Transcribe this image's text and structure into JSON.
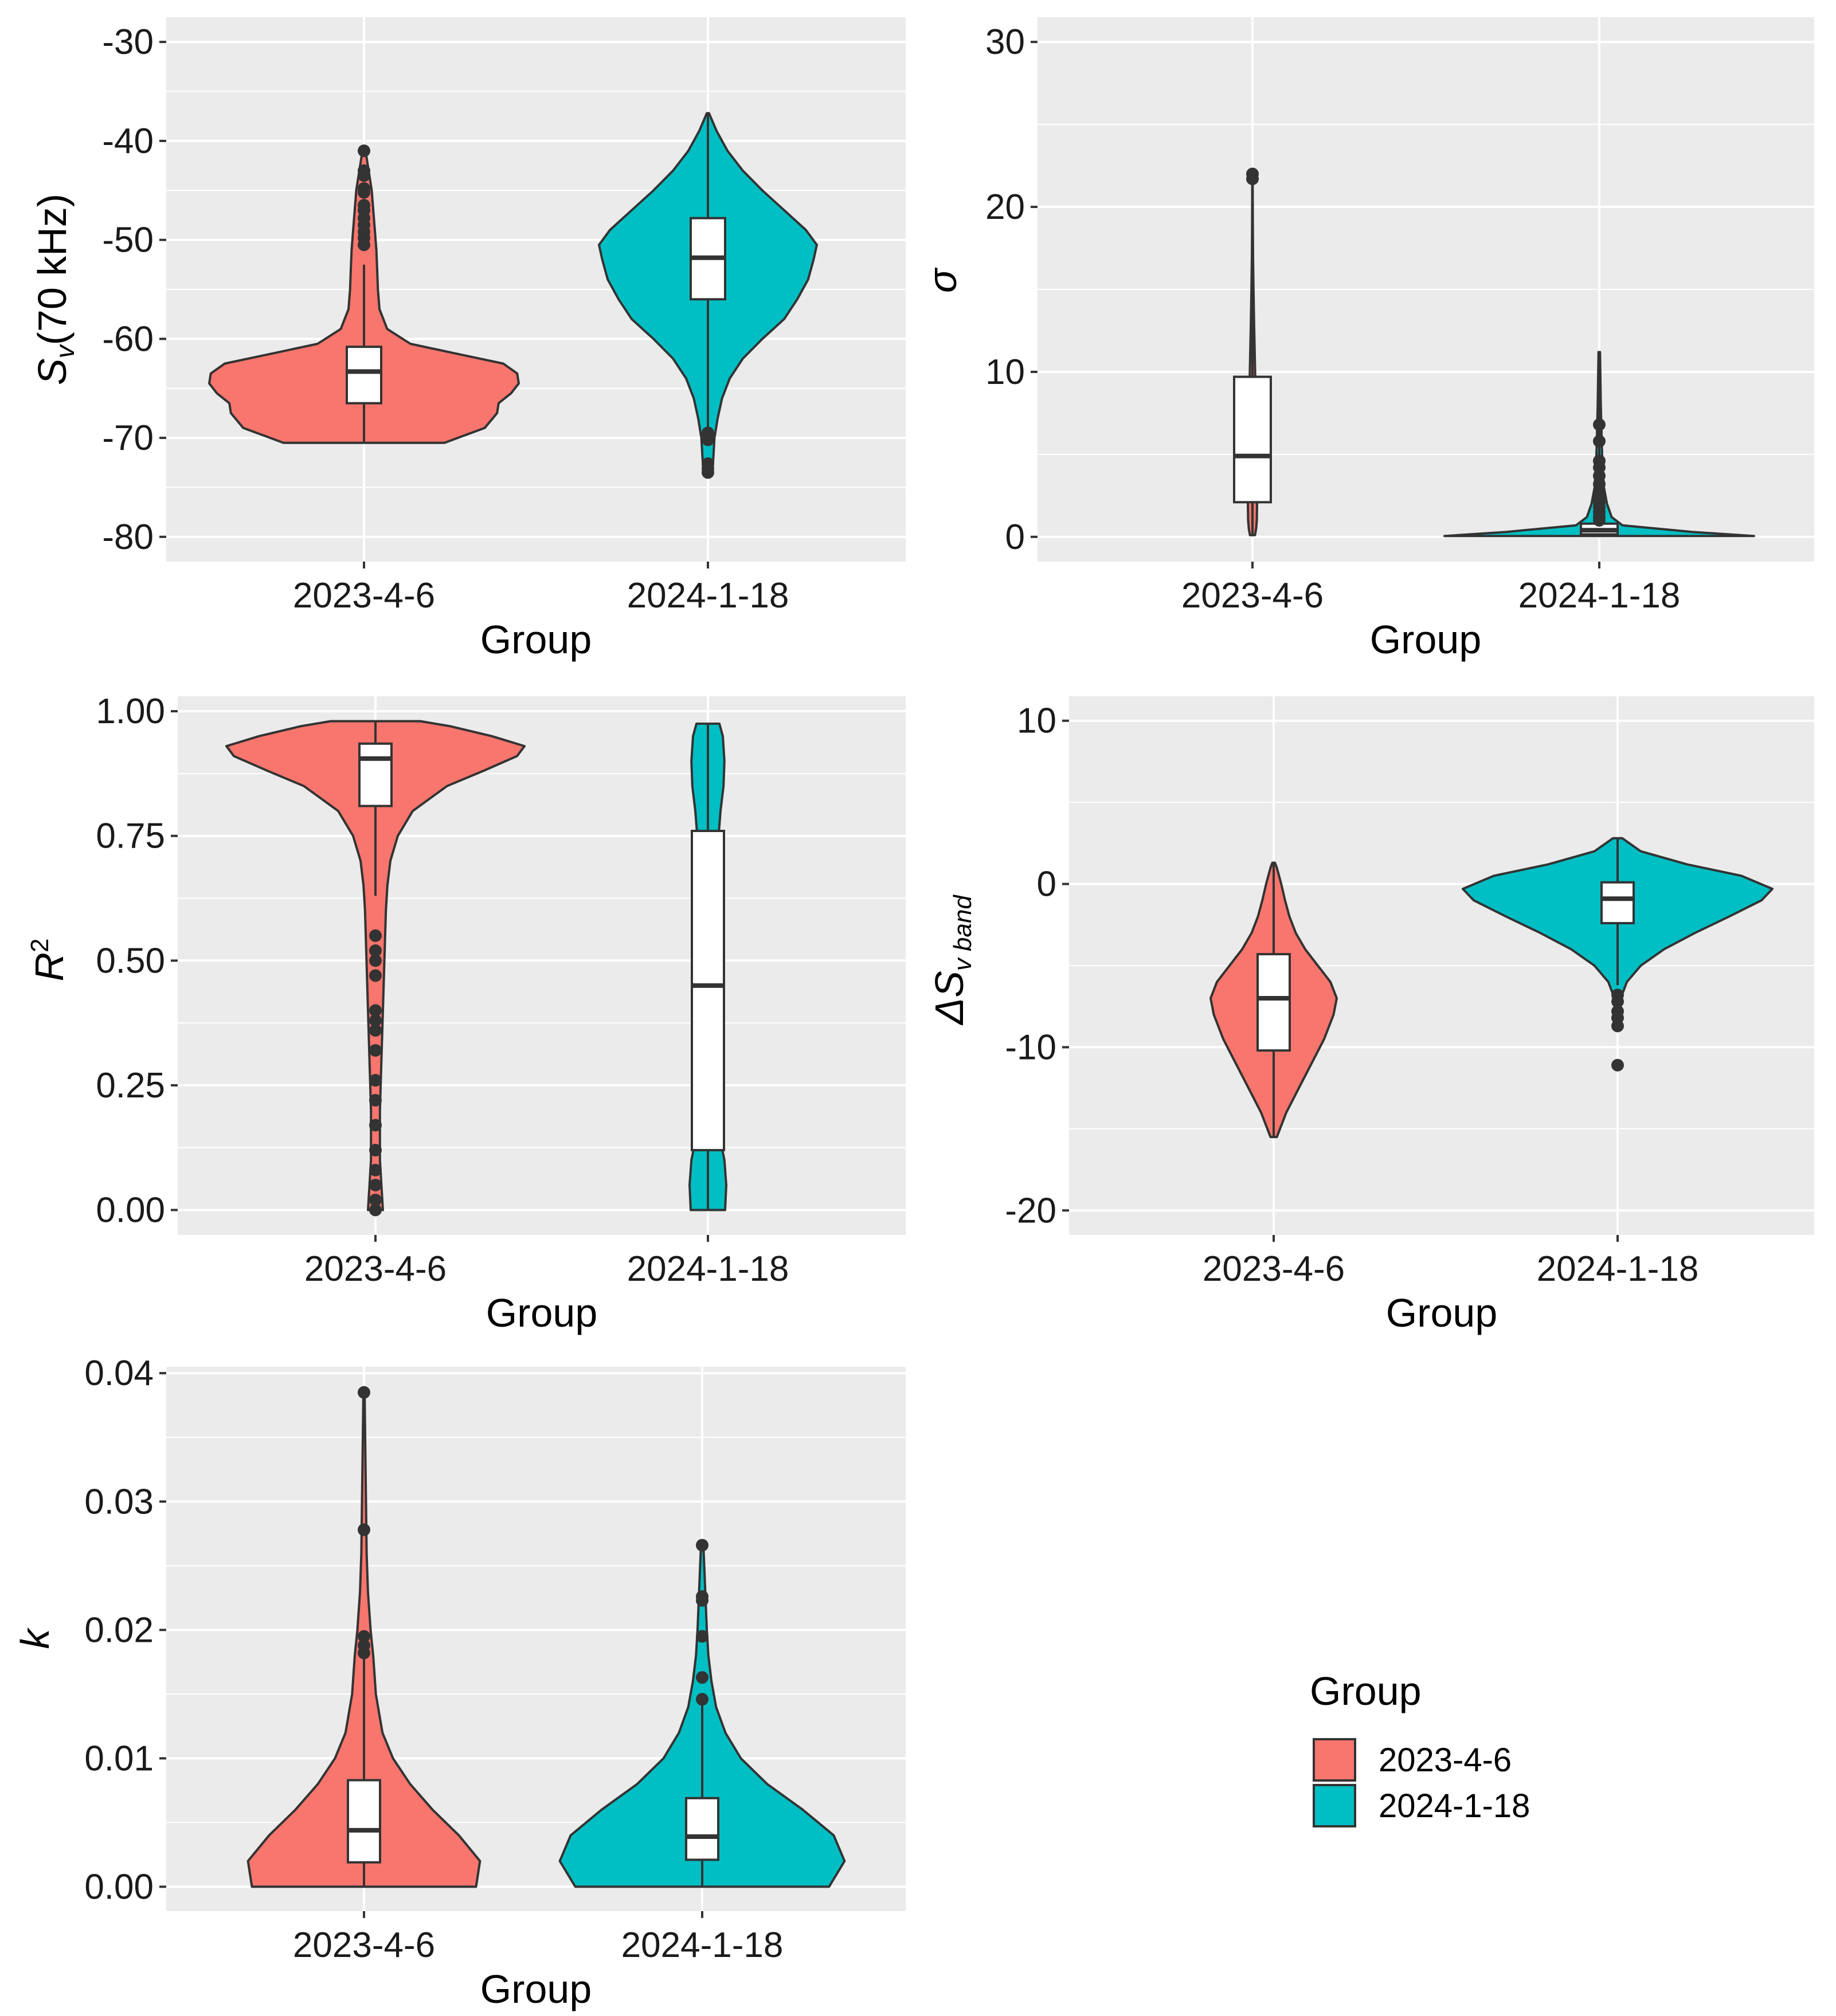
{
  "colors": {
    "group_2023": "#f8766d",
    "group_2024": "#00bfc4",
    "panel_background": "#ebebeb",
    "grid": "#ffffff",
    "outline": "#333333"
  },
  "legend": {
    "title": "Group",
    "items": [
      {
        "label": "2023-4-6",
        "color": "#f8766d"
      },
      {
        "label": "2024-1-18",
        "color": "#00bfc4"
      }
    ]
  },
  "chart_data": [
    {
      "id": "sv70",
      "type": "violin",
      "xlabel": "Group",
      "ylabel": "Sv(70 kHz)",
      "ylabel_main": "S",
      "ylabel_sub": "v",
      "ylabel_rest": "(70 kHz)",
      "ylim": [
        -82.5,
        -27.5
      ],
      "yticks": [
        -30,
        -40,
        -50,
        -60,
        -70,
        -80
      ],
      "ytick_labels": [
        "-30",
        "-40",
        "-50",
        "-60",
        "-70",
        "-80"
      ],
      "categories": [
        "2023-4-6",
        "2024-1-18"
      ],
      "groups": [
        {
          "name": "2023-4-6",
          "density": [
            [
              -70.5,
              0.52
            ],
            [
              -69,
              0.78
            ],
            [
              -67.5,
              0.86
            ],
            [
              -66.5,
              0.87
            ],
            [
              -65.5,
              0.95
            ],
            [
              -64.5,
              1.0
            ],
            [
              -63.5,
              0.99
            ],
            [
              -62.5,
              0.9
            ],
            [
              -61.5,
              0.6
            ],
            [
              -60.5,
              0.3
            ],
            [
              -59,
              0.15
            ],
            [
              -57,
              0.1
            ],
            [
              -55,
              0.09
            ],
            [
              -53,
              0.085
            ],
            [
              -51,
              0.08
            ],
            [
              -49,
              0.07
            ],
            [
              -47,
              0.06
            ],
            [
              -45,
              0.05
            ],
            [
              -43,
              0.03
            ],
            [
              -41,
              0.01
            ]
          ],
          "box": {
            "q1": -66.5,
            "median": -63.3,
            "q3": -60.8,
            "whisker_low": -70.4,
            "whisker_high": -52.5
          },
          "outliers": [
            -41.0,
            -43.0,
            -43.5,
            -44.8,
            -45.2,
            -46.5,
            -47.0,
            -47.8,
            -48.5,
            -49.2,
            -49.8,
            -50.5
          ]
        },
        {
          "name": "2024-1-18",
          "density": [
            [
              -73.5,
              0.04
            ],
            [
              -72,
              0.05
            ],
            [
              -70,
              0.06
            ],
            [
              -68,
              0.09
            ],
            [
              -66,
              0.13
            ],
            [
              -64,
              0.2
            ],
            [
              -62,
              0.32
            ],
            [
              -60,
              0.5
            ],
            [
              -58,
              0.7
            ],
            [
              -56,
              0.82
            ],
            [
              -54,
              0.92
            ],
            [
              -52,
              0.97
            ],
            [
              -50.5,
              1.0
            ],
            [
              -49,
              0.9
            ],
            [
              -47,
              0.7
            ],
            [
              -45,
              0.5
            ],
            [
              -43,
              0.32
            ],
            [
              -41,
              0.18
            ],
            [
              -39,
              0.08
            ],
            [
              -37.2,
              0.01
            ]
          ],
          "box": {
            "q1": -56.0,
            "median": -51.8,
            "q3": -47.8,
            "whisker_low": -69.0,
            "whisker_high": -37.2
          },
          "outliers": [
            -69.5,
            -70.2,
            -72.6,
            -73.1,
            -73.5
          ]
        }
      ]
    },
    {
      "id": "sigma",
      "type": "violin",
      "xlabel": "Group",
      "ylabel": "σ",
      "ylim": [
        -1.5,
        31.5
      ],
      "yticks": [
        0,
        10,
        20,
        30
      ],
      "ytick_labels": [
        "0",
        "10",
        "20",
        "30"
      ],
      "categories": [
        "2023-4-6",
        "2024-1-18"
      ],
      "groups": [
        {
          "name": "2023-4-6",
          "density": [
            [
              0.1,
              0.22
            ],
            [
              0.5,
              0.32
            ],
            [
              1,
              0.38
            ],
            [
              2,
              0.4
            ],
            [
              3,
              0.38
            ],
            [
              5,
              0.34
            ],
            [
              7,
              0.3
            ],
            [
              9,
              0.26
            ],
            [
              11,
              0.2
            ],
            [
              13,
              0.14
            ],
            [
              15,
              0.09
            ],
            [
              17,
              0.05
            ],
            [
              19,
              0.03
            ],
            [
              21,
              0.02
            ],
            [
              22,
              0.01
            ]
          ],
          "box": {
            "q1": 2.1,
            "median": 4.9,
            "q3": 9.7,
            "whisker_low": 0.1,
            "whisker_high": 21.9
          },
          "outliers": [
            21.7,
            22.0
          ]
        },
        {
          "name": "2024-1-18",
          "density": [
            [
              0.05,
              1.0
            ],
            [
              0.3,
              0.6
            ],
            [
              0.7,
              0.15
            ],
            [
              1.2,
              0.08
            ],
            [
              2,
              0.05
            ],
            [
              3,
              0.03
            ],
            [
              4.5,
              0.02
            ],
            [
              6,
              0.015
            ],
            [
              8,
              0.01
            ],
            [
              11.2,
              0.005
            ]
          ],
          "box": {
            "q1": 0.15,
            "median": 0.4,
            "q3": 0.8,
            "whisker_low": 0.0,
            "whisker_high": 11.2
          },
          "outliers": [
            1.0,
            1.2,
            1.5,
            1.8,
            2.1,
            2.4,
            2.8,
            3.2,
            3.7,
            4.2,
            4.6,
            5.8,
            6.8
          ]
        }
      ]
    },
    {
      "id": "r2",
      "type": "violin",
      "xlabel": "Group",
      "ylabel": "R²",
      "ylabel_main": "R",
      "ylabel_sup": "2",
      "ylim": [
        -0.05,
        1.03
      ],
      "yticks": [
        0.0,
        0.25,
        0.5,
        0.75,
        1.0
      ],
      "ytick_labels": [
        "0.00",
        "0.25",
        "0.50",
        "0.75",
        "1.00"
      ],
      "categories": [
        "2023-4-6",
        "2024-1-18"
      ],
      "groups": [
        {
          "name": "2023-4-6",
          "density": [
            [
              0.0,
              0.05
            ],
            [
              0.1,
              0.03
            ],
            [
              0.2,
              0.03
            ],
            [
              0.3,
              0.04
            ],
            [
              0.4,
              0.05
            ],
            [
              0.5,
              0.06
            ],
            [
              0.6,
              0.07
            ],
            [
              0.65,
              0.08
            ],
            [
              0.7,
              0.1
            ],
            [
              0.75,
              0.15
            ],
            [
              0.8,
              0.25
            ],
            [
              0.85,
              0.48
            ],
            [
              0.88,
              0.72
            ],
            [
              0.91,
              0.95
            ],
            [
              0.93,
              1.0
            ],
            [
              0.95,
              0.78
            ],
            [
              0.97,
              0.5
            ],
            [
              0.98,
              0.3
            ]
          ],
          "box": {
            "q1": 0.81,
            "median": 0.905,
            "q3": 0.935,
            "whisker_low": 0.63,
            "whisker_high": 0.98
          },
          "outliers": [
            0.0,
            0.02,
            0.05,
            0.08,
            0.12,
            0.17,
            0.22,
            0.26,
            0.32,
            0.36,
            0.38,
            0.4,
            0.47,
            0.5,
            0.52,
            0.55
          ]
        },
        {
          "name": "2024-1-18",
          "density": [
            [
              0.0,
              0.75
            ],
            [
              0.05,
              0.8
            ],
            [
              0.1,
              0.72
            ],
            [
              0.15,
              0.5
            ],
            [
              0.2,
              0.3
            ],
            [
              0.3,
              0.2
            ],
            [
              0.4,
              0.2
            ],
            [
              0.5,
              0.22
            ],
            [
              0.6,
              0.28
            ],
            [
              0.7,
              0.38
            ],
            [
              0.8,
              0.55
            ],
            [
              0.85,
              0.68
            ],
            [
              0.9,
              0.72
            ],
            [
              0.95,
              0.65
            ],
            [
              0.975,
              0.5
            ]
          ],
          "box": {
            "q1": 0.12,
            "median": 0.45,
            "q3": 0.76,
            "whisker_low": 0.0,
            "whisker_high": 0.975
          },
          "outliers": []
        }
      ]
    },
    {
      "id": "delta_sv_band",
      "type": "violin",
      "xlabel": "Group",
      "ylabel": "ΔSv band",
      "ylabel_main": "ΔS",
      "ylabel_sub": "v band",
      "ylim": [
        -21.5,
        11.5
      ],
      "yticks": [
        -20,
        -10,
        0,
        10
      ],
      "ytick_labels": [
        "-20",
        "-10",
        "0",
        "10"
      ],
      "categories": [
        "2023-4-6",
        "2024-1-18"
      ],
      "groups": [
        {
          "name": "2023-4-6",
          "density": [
            [
              -15.5,
              0.05
            ],
            [
              -14,
              0.2
            ],
            [
              -12.5,
              0.4
            ],
            [
              -11,
              0.6
            ],
            [
              -9.5,
              0.8
            ],
            [
              -8,
              0.95
            ],
            [
              -7,
              1.0
            ],
            [
              -6,
              0.9
            ],
            [
              -5,
              0.7
            ],
            [
              -4,
              0.5
            ],
            [
              -3,
              0.35
            ],
            [
              -2,
              0.25
            ],
            [
              -1,
              0.18
            ],
            [
              0,
              0.12
            ],
            [
              1,
              0.05
            ],
            [
              1.3,
              0.02
            ]
          ],
          "box": {
            "q1": -10.2,
            "median": -7.0,
            "q3": -4.3,
            "whisker_low": -15.5,
            "whisker_high": 1.3
          },
          "outliers": []
        },
        {
          "name": "2024-1-18",
          "density": [
            [
              -7,
              0.02
            ],
            [
              -6,
              0.06
            ],
            [
              -5,
              0.15
            ],
            [
              -4,
              0.3
            ],
            [
              -3,
              0.5
            ],
            [
              -2,
              0.72
            ],
            [
              -1,
              0.93
            ],
            [
              -0.3,
              1.0
            ],
            [
              0.5,
              0.8
            ],
            [
              1.2,
              0.45
            ],
            [
              2,
              0.15
            ],
            [
              2.8,
              0.03
            ]
          ],
          "box": {
            "q1": -2.4,
            "median": -0.9,
            "q3": 0.1,
            "whisker_low": -6.2,
            "whisker_high": 2.8
          },
          "outliers": [
            -6.8,
            -7.2,
            -7.8,
            -8.2,
            -8.7,
            -11.1
          ]
        }
      ]
    },
    {
      "id": "k",
      "type": "violin",
      "xlabel": "Group",
      "ylabel": "k",
      "ylim": [
        -0.0019,
        0.0405
      ],
      "yticks": [
        0.0,
        0.01,
        0.02,
        0.03,
        0.04
      ],
      "ytick_labels": [
        "0.00",
        "0.01",
        "0.02",
        "0.03",
        "0.04"
      ],
      "categories": [
        "2023-4-6",
        "2024-1-18"
      ],
      "groups": [
        {
          "name": "2023-4-6",
          "density": [
            [
              0.0,
              0.85
            ],
            [
              0.002,
              0.88
            ],
            [
              0.004,
              0.72
            ],
            [
              0.006,
              0.52
            ],
            [
              0.008,
              0.35
            ],
            [
              0.01,
              0.22
            ],
            [
              0.012,
              0.14
            ],
            [
              0.015,
              0.09
            ],
            [
              0.018,
              0.07
            ],
            [
              0.02,
              0.05
            ],
            [
              0.023,
              0.03
            ],
            [
              0.026,
              0.02
            ],
            [
              0.03,
              0.015
            ],
            [
              0.034,
              0.01
            ],
            [
              0.0385,
              0.005
            ]
          ],
          "box": {
            "q1": 0.0019,
            "median": 0.0044,
            "q3": 0.0083,
            "whisker_low": 0.0,
            "whisker_high": 0.0178
          },
          "outliers": [
            0.0182,
            0.0188,
            0.0195,
            0.0278,
            0.0385
          ]
        },
        {
          "name": "2024-1-18",
          "density": [
            [
              0.0,
              0.82
            ],
            [
              0.002,
              0.92
            ],
            [
              0.004,
              0.85
            ],
            [
              0.006,
              0.65
            ],
            [
              0.008,
              0.42
            ],
            [
              0.01,
              0.25
            ],
            [
              0.012,
              0.15
            ],
            [
              0.014,
              0.09
            ],
            [
              0.016,
              0.06
            ],
            [
              0.018,
              0.04
            ],
            [
              0.02,
              0.03
            ],
            [
              0.023,
              0.02
            ],
            [
              0.0265,
              0.008
            ]
          ],
          "box": {
            "q1": 0.0021,
            "median": 0.0039,
            "q3": 0.0069,
            "whisker_low": 0.0,
            "whisker_high": 0.0143
          },
          "outliers": [
            0.0146,
            0.0163,
            0.0195,
            0.0223,
            0.0226,
            0.0266
          ]
        }
      ]
    }
  ]
}
